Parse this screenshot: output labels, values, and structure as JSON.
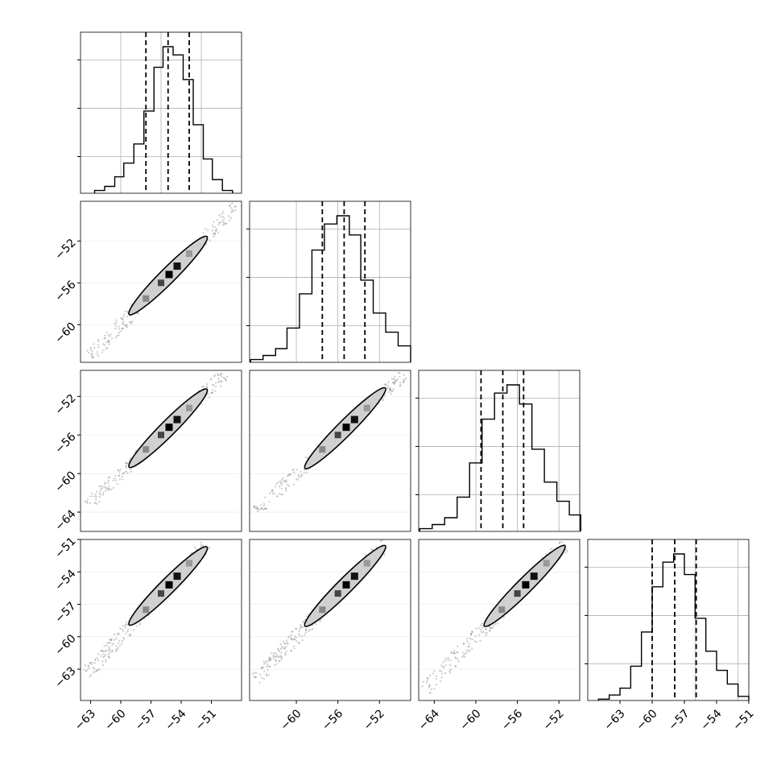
{
  "chart_data": {
    "type": "corner",
    "grid": true,
    "marginals": [
      {
        "name": "",
        "xlim": [
          -64,
          -48
        ],
        "bins": [
          {
            "from": -62.6,
            "to": -61.6,
            "count": 2
          },
          {
            "from": -61.6,
            "to": -60.6,
            "count": 5
          },
          {
            "from": -60.6,
            "to": -59.7,
            "count": 12
          },
          {
            "from": -59.7,
            "to": -58.7,
            "count": 22
          },
          {
            "from": -58.7,
            "to": -57.7,
            "count": 36
          },
          {
            "from": -57.7,
            "to": -56.7,
            "count": 60
          },
          {
            "from": -56.7,
            "to": -55.8,
            "count": 92
          },
          {
            "from": -55.8,
            "to": -54.8,
            "count": 107
          },
          {
            "from": -54.8,
            "to": -53.8,
            "count": 101
          },
          {
            "from": -53.8,
            "to": -52.8,
            "count": 83
          },
          {
            "from": -52.8,
            "to": -51.8,
            "count": 50
          },
          {
            "from": -51.8,
            "to": -50.9,
            "count": 25
          },
          {
            "from": -50.9,
            "to": -49.9,
            "count": 10
          },
          {
            "from": -49.9,
            "to": -48.9,
            "count": 2
          }
        ],
        "quantiles": [
          -57.5,
          -55.3,
          -53.2
        ]
      },
      {
        "name": "",
        "xlim": [
          -64.5,
          -49
        ],
        "bins": [
          {
            "from": -64.4,
            "to": -63.2,
            "count": 2
          },
          {
            "from": -63.2,
            "to": -62.0,
            "count": 5
          },
          {
            "from": -62.0,
            "to": -60.9,
            "count": 10
          },
          {
            "from": -60.9,
            "to": -59.7,
            "count": 25
          },
          {
            "from": -59.7,
            "to": -58.5,
            "count": 50
          },
          {
            "from": -58.5,
            "to": -57.3,
            "count": 82
          },
          {
            "from": -57.3,
            "to": -56.1,
            "count": 101
          },
          {
            "from": -56.1,
            "to": -54.9,
            "count": 107
          },
          {
            "from": -54.9,
            "to": -53.8,
            "count": 93
          },
          {
            "from": -53.8,
            "to": -52.6,
            "count": 60
          },
          {
            "from": -52.6,
            "to": -51.4,
            "count": 36
          },
          {
            "from": -51.4,
            "to": -50.2,
            "count": 22
          },
          {
            "from": -50.2,
            "to": -49.0,
            "count": 12
          }
        ],
        "quantiles": [
          -57.5,
          -55.4,
          -53.4
        ]
      },
      {
        "name": "",
        "xlim": [
          -65.5,
          -50
        ],
        "bins": [
          {
            "from": -65.4,
            "to": -64.2,
            "count": 2
          },
          {
            "from": -64.2,
            "to": -63.0,
            "count": 5
          },
          {
            "from": -63.0,
            "to": -61.8,
            "count": 10
          },
          {
            "from": -61.8,
            "to": -60.6,
            "count": 25
          },
          {
            "from": -60.6,
            "to": -59.4,
            "count": 50
          },
          {
            "from": -59.4,
            "to": -58.2,
            "count": 82
          },
          {
            "from": -58.2,
            "to": -57.0,
            "count": 101
          },
          {
            "from": -57.0,
            "to": -55.8,
            "count": 107
          },
          {
            "from": -55.8,
            "to": -54.6,
            "count": 93
          },
          {
            "from": -54.6,
            "to": -53.4,
            "count": 60
          },
          {
            "from": -53.4,
            "to": -52.2,
            "count": 36
          },
          {
            "from": -52.2,
            "to": -51.0,
            "count": 22
          },
          {
            "from": -51.0,
            "to": -49.9,
            "count": 12
          }
        ],
        "quantiles": [
          -59.5,
          -57.4,
          -55.4
        ]
      },
      {
        "name": "",
        "xlim": [
          -66,
          -51
        ],
        "bins": [
          {
            "from": -65.0,
            "to": -64.0,
            "count": 1
          },
          {
            "from": -64.0,
            "to": -63.0,
            "count": 4
          },
          {
            "from": -63.0,
            "to": -62.0,
            "count": 9
          },
          {
            "from": -62.0,
            "to": -61.0,
            "count": 25
          },
          {
            "from": -61.0,
            "to": -60.0,
            "count": 50
          },
          {
            "from": -60.0,
            "to": -59.0,
            "count": 83
          },
          {
            "from": -59.0,
            "to": -58.0,
            "count": 101
          },
          {
            "from": -58.0,
            "to": -57.0,
            "count": 107
          },
          {
            "from": -57.0,
            "to": -56.0,
            "count": 92
          },
          {
            "from": -56.0,
            "to": -55.0,
            "count": 60
          },
          {
            "from": -55.0,
            "to": -54.0,
            "count": 36
          },
          {
            "from": -54.0,
            "to": -53.0,
            "count": 22
          },
          {
            "from": -53.0,
            "to": -52.0,
            "count": 12
          },
          {
            "from": -52.0,
            "to": -51.0,
            "count": 3
          }
        ],
        "quantiles": [
          -60,
          -57.9,
          -55.9
        ]
      }
    ],
    "x_axes": [
      {
        "ticks": [
          -63,
          -60,
          -57,
          -54,
          -51
        ],
        "tick_labels": [
          "−63",
          "−60",
          "−57",
          "−54",
          "−51"
        ]
      },
      {
        "ticks": [
          -60,
          -56,
          -52
        ],
        "tick_labels": [
          "−60",
          "−56",
          "−52"
        ]
      },
      {
        "ticks": [
          -64,
          -60,
          -56,
          -52
        ],
        "tick_labels": [
          "−64",
          "−60",
          "−56",
          "−52"
        ]
      },
      {
        "ticks": [
          -63,
          -60,
          -57,
          -54,
          -51
        ],
        "tick_labels": [
          "−63",
          "−60",
          "−57",
          "−54",
          "−51"
        ]
      }
    ],
    "y_axes": [
      null,
      {
        "ylim": [
          -63.6,
          -48.2
        ],
        "ticks": [
          -60,
          -56,
          -52
        ],
        "tick_labels": [
          "−60",
          "−56",
          "−52"
        ]
      },
      {
        "ylim": [
          -66,
          -49.3
        ],
        "ticks": [
          -64,
          -60,
          -56,
          -52
        ],
        "tick_labels": [
          "−64",
          "−60",
          "−56",
          "−52"
        ]
      },
      {
        "ylim": [
          -65.9,
          -51
        ],
        "ticks": [
          -63,
          -60,
          -57,
          -54,
          -51
        ],
        "tick_labels": [
          "−63",
          "−60",
          "−57",
          "−54",
          "−51"
        ]
      }
    ],
    "contour_cells": [
      -57.5,
      -56.0,
      -55.2,
      -54.4,
      -53.2
    ]
  }
}
